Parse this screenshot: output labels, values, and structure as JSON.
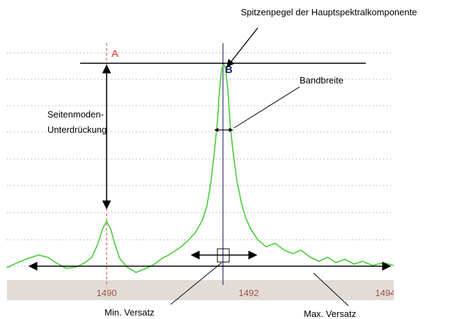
{
  "annotations": {
    "peak_level": "Spitzenpegel der Hauptspektralkomponente",
    "bandwidth": "Bandbreite",
    "smsr_line1": "Seitenmoden-",
    "smsr_line2": "Unterdrückung",
    "min_offset": "Min. Versatz",
    "max_offset": "Max. Versatz"
  },
  "markers": {
    "a": "A",
    "b": "B"
  },
  "axis": {
    "tick_labels": [
      "1490",
      "1492",
      "1494"
    ]
  }
}
